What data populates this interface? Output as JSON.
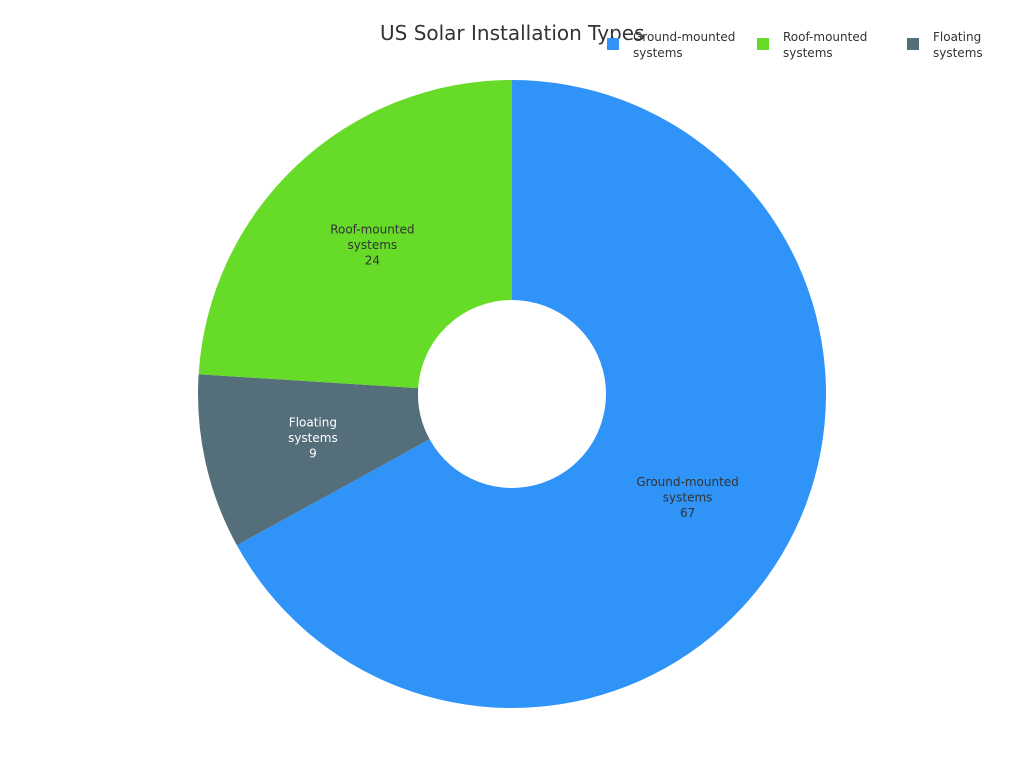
{
  "chart_data": {
    "type": "pie",
    "donut": true,
    "title": "US Solar Installation Types",
    "categories": [
      "Ground-mounted systems",
      "Floating systems",
      "Roof-mounted systems"
    ],
    "values": [
      67,
      9,
      24
    ],
    "colors": [
      "#2f93f8",
      "#546e7a",
      "#66db28"
    ],
    "label_colors": [
      "#333333",
      "#ffffff",
      "#333333"
    ],
    "legend_order": [
      0,
      2,
      1
    ],
    "legend_position": "top-right"
  }
}
